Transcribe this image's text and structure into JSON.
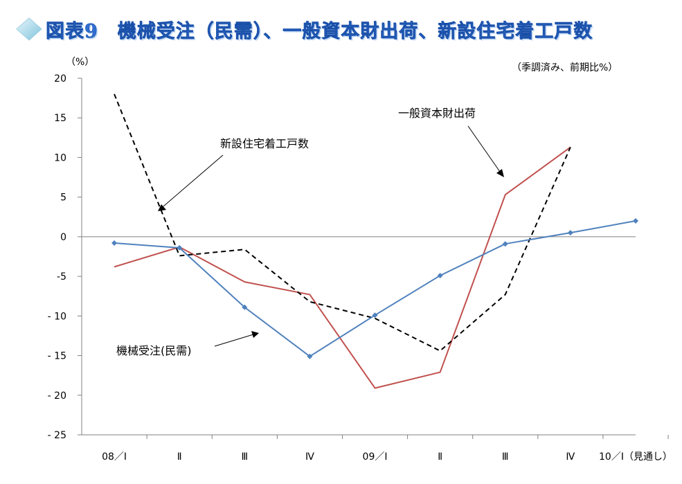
{
  "title": "図表9　機械受注（民需）、一般資本財出荷、新設住宅着工戸数",
  "colors": {
    "title": "#2f6fd0",
    "axis": "#808080",
    "machinery": "#4f81bd",
    "capital_goods": "#c0504d",
    "housing": "#000000"
  },
  "chart_data": {
    "type": "line",
    "title": "図表9　機械受注（民需）、一般資本財出荷、新設住宅着工戸数",
    "y_unit_label": "（%）",
    "note": "（季調済み、前期比%）",
    "categories": [
      "08／Ⅰ",
      "Ⅱ",
      "Ⅲ",
      "Ⅳ",
      "09／Ⅰ",
      "Ⅱ",
      "Ⅲ",
      "Ⅳ",
      "10／Ⅰ（見通し）"
    ],
    "ylim": [
      -25,
      20
    ],
    "yticks": [
      20,
      15,
      10,
      5,
      0,
      -5,
      -10,
      -15,
      -20,
      -25
    ],
    "ytick_labels": [
      "20",
      "15",
      "10",
      "5",
      "0",
      "-5",
      "- 10",
      "- 15",
      "- 20",
      "- 25"
    ],
    "series": [
      {
        "name": "機械受注(民需)",
        "values": [
          -0.8,
          -1.4,
          -8.9,
          -15.1,
          -9.9,
          -4.9,
          -0.9,
          0.5,
          2.0
        ],
        "style": "solid-markers"
      },
      {
        "name": "一般資本財出荷",
        "values": [
          -3.8,
          -1.3,
          -5.7,
          -7.3,
          -19.1,
          -17.1,
          5.3,
          11.3,
          null
        ],
        "style": "solid"
      },
      {
        "name": "新設住宅着工戸数",
        "values": [
          18.0,
          -2.4,
          -1.6,
          -8.2,
          -10.3,
          -14.4,
          -7.3,
          11.3,
          null
        ],
        "style": "dashed"
      }
    ]
  }
}
